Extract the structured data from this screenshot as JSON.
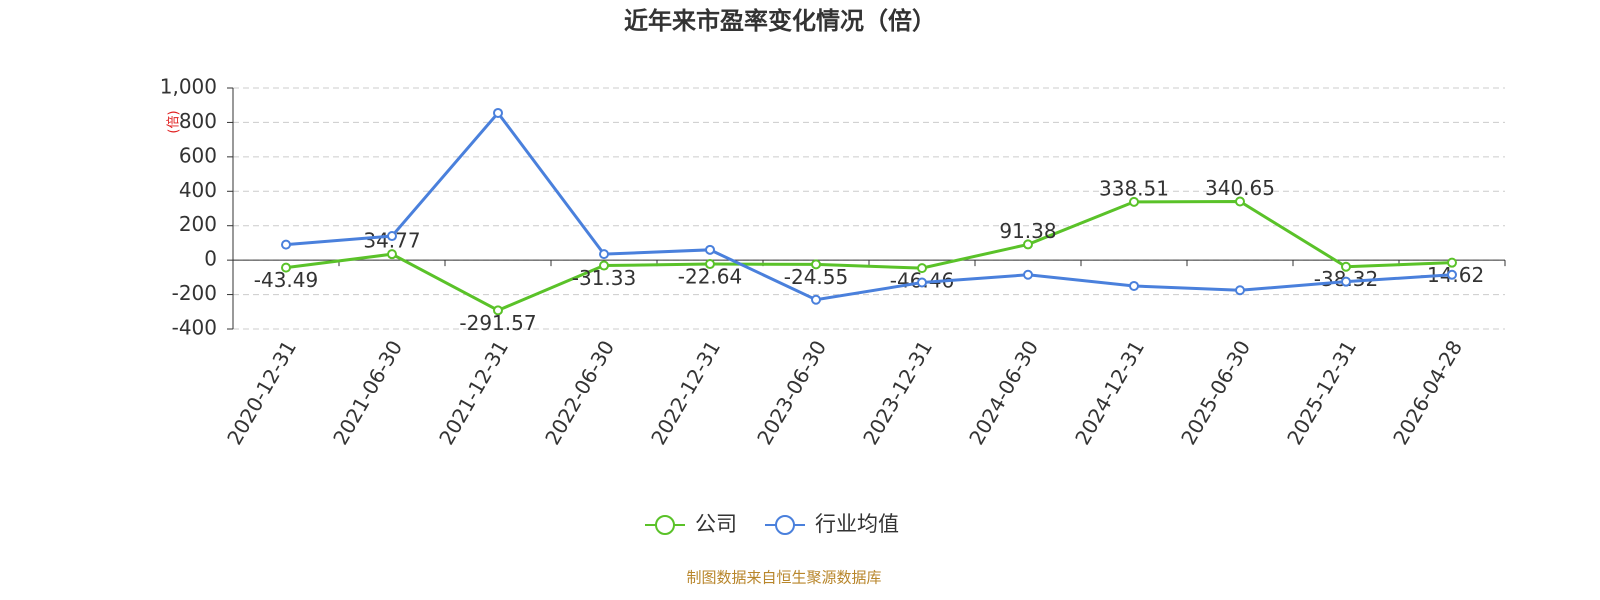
{
  "chart_data": {
    "type": "line",
    "title": "近年来市盈率变化情况（倍）",
    "y_label": "(倍)",
    "source": "制图数据来自恒生聚源数据库",
    "categories": [
      "2020-12-31",
      "2021-06-30",
      "2021-12-31",
      "2022-06-30",
      "2022-12-31",
      "2023-06-30",
      "2023-12-31",
      "2024-06-30",
      "2024-12-31",
      "2025-06-30",
      "2025-12-31",
      "2026-04-28"
    ],
    "series": [
      {
        "name": "公司",
        "color": "#5ac229",
        "values": [
          -43.49,
          34.77,
          -291.57,
          -31.33,
          -22.64,
          -24.55,
          -46.46,
          91.38,
          338.51,
          340.65,
          -38.32,
          -14.62
        ],
        "show_labels": true
      },
      {
        "name": "行业均值",
        "color": "#4a80dc",
        "values": [
          90,
          140,
          855,
          35,
          60,
          -230,
          -130,
          -85,
          -150,
          -175,
          -125,
          -85
        ],
        "show_labels": false
      }
    ],
    "ylim": [
      -400,
      1000
    ],
    "yticks": [
      -400,
      -200,
      0,
      200,
      400,
      600,
      800,
      {
        "value": 1000,
        "label": "1,000"
      }
    ],
    "grid": true,
    "legend": "bottom"
  }
}
